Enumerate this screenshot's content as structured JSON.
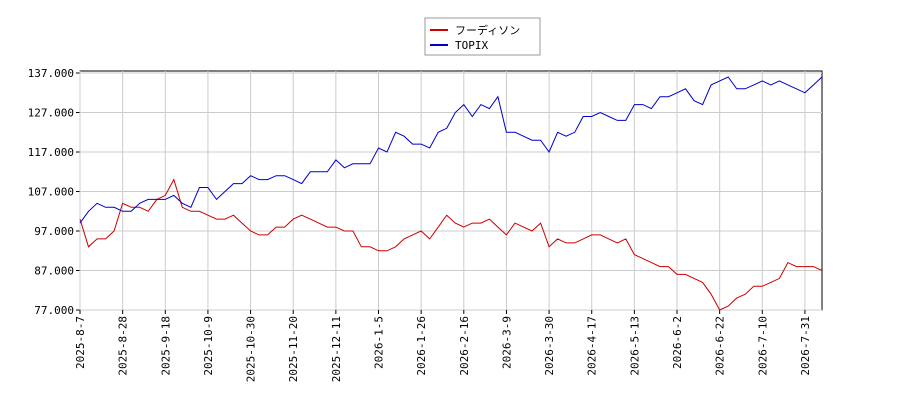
{
  "chart_data": {
    "type": "line",
    "categories": [
      "2025-8-7",
      null,
      null,
      null,
      null,
      "2025-8-28",
      null,
      null,
      null,
      null,
      "2025-9-18",
      null,
      null,
      null,
      null,
      "2025-10-9",
      null,
      null,
      null,
      null,
      "2025-10-30",
      null,
      null,
      null,
      null,
      "2025-11-20",
      null,
      null,
      null,
      null,
      "2025-12-11",
      null,
      null,
      null,
      null,
      "2026-1-5",
      null,
      null,
      null,
      null,
      "2026-1-26",
      null,
      null,
      null,
      null,
      "2026-2-16",
      null,
      null,
      null,
      null,
      "2026-3-9",
      null,
      null,
      null,
      null,
      "2026-3-30",
      null,
      null,
      null,
      null,
      "2026-4-17",
      null,
      null,
      null,
      null,
      "2026-5-13",
      null,
      null,
      null,
      null,
      "2026-6-2",
      null,
      null,
      null,
      null,
      "2026-6-22",
      null,
      null,
      null,
      null,
      "2026-7-10",
      null,
      null,
      null,
      null,
      "2026-7-31",
      null,
      null
    ],
    "series": [
      {
        "name": "フーディソン",
        "color": "#cc0000",
        "values": [
          100,
          93,
          95,
          95,
          97,
          104,
          103,
          103,
          102,
          105,
          106,
          110,
          103,
          102,
          102,
          101,
          100,
          100,
          101,
          99,
          97,
          96,
          96,
          98,
          98,
          100,
          101,
          100,
          99,
          98,
          98,
          97,
          97,
          93,
          93,
          92,
          92,
          93,
          95,
          96,
          97,
          95,
          98,
          101,
          99,
          98,
          99,
          99,
          100,
          98,
          96,
          99,
          98,
          97,
          99,
          93,
          95,
          94,
          94,
          95,
          96,
          96,
          95,
          94,
          95,
          91,
          90,
          89,
          88,
          88,
          86,
          86,
          85,
          84,
          81,
          77,
          78,
          80,
          81,
          83,
          83,
          84,
          85,
          89,
          88,
          88,
          88,
          87
        ]
      },
      {
        "name": "TOPIX",
        "color": "#0000cc",
        "values": [
          99,
          102,
          104,
          103,
          103,
          102,
          102,
          104,
          105,
          105,
          105,
          106,
          104,
          103,
          108,
          108,
          105,
          107,
          109,
          109,
          111,
          110,
          110,
          111,
          111,
          110,
          109,
          112,
          112,
          112,
          115,
          113,
          114,
          114,
          114,
          118,
          117,
          122,
          121,
          119,
          119,
          118,
          122,
          123,
          127,
          129,
          126,
          129,
          128,
          131,
          122,
          122,
          121,
          120,
          120,
          117,
          122,
          121,
          122,
          126,
          126,
          127,
          126,
          125,
          125,
          129,
          129,
          128,
          131,
          131,
          132,
          133,
          130,
          129,
          134,
          135,
          136,
          133,
          133,
          134,
          135,
          134,
          135,
          134,
          133,
          132,
          134,
          136
        ]
      }
    ],
    "ylim": [
      77,
      137
    ],
    "yticks": [
      {
        "value": 77,
        "label": "77.000"
      },
      {
        "value": 87,
        "label": "87.000"
      },
      {
        "value": 97,
        "label": "97.000"
      },
      {
        "value": 107,
        "label": "107.000"
      },
      {
        "value": 117,
        "label": "117.000"
      },
      {
        "value": 127,
        "label": "127.000"
      },
      {
        "value": 137,
        "label": "137.000"
      }
    ],
    "grid": true
  }
}
